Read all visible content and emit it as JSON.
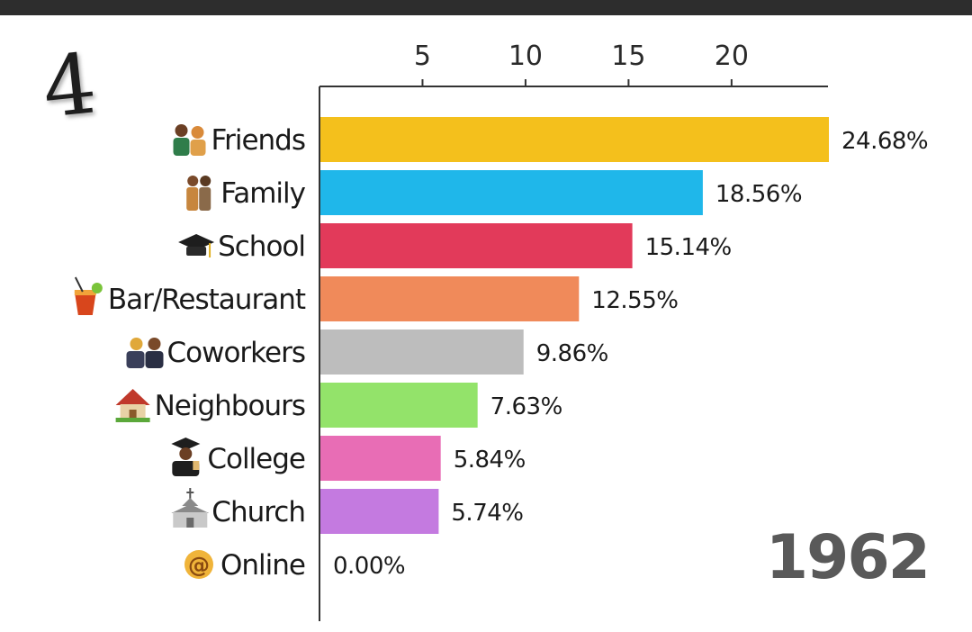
{
  "corner_number": "4",
  "year": "1962",
  "chart_data": {
    "type": "bar",
    "orientation": "horizontal",
    "categories": [
      "Friends",
      "Family",
      "School",
      "Bar/Restaurant",
      "Coworkers",
      "Neighbours",
      "College",
      "Church",
      "Online"
    ],
    "values": [
      24.68,
      18.56,
      15.14,
      12.55,
      9.86,
      7.63,
      5.84,
      5.74,
      0.0
    ],
    "value_labels": [
      "24.68%",
      "18.56%",
      "15.14%",
      "12.55%",
      "9.86%",
      "7.63%",
      "5.84%",
      "5.74%",
      "0.00%"
    ],
    "colors": [
      "#f4c01c",
      "#1fb7ea",
      "#e23a5a",
      "#f08a5a",
      "#bdbdbd",
      "#93e36a",
      "#e86db5",
      "#c47ae0",
      "#cccccc"
    ],
    "icons": [
      "couple-icon",
      "family-icon",
      "graduation-cap-icon",
      "cocktail-icon",
      "coworkers-icon",
      "house-icon",
      "graduate-icon",
      "church-icon",
      "at-sign-icon"
    ],
    "xticks": [
      5,
      10,
      15,
      20
    ],
    "xlim": [
      0,
      24.68
    ],
    "title": "",
    "xlabel": "",
    "ylabel": ""
  }
}
